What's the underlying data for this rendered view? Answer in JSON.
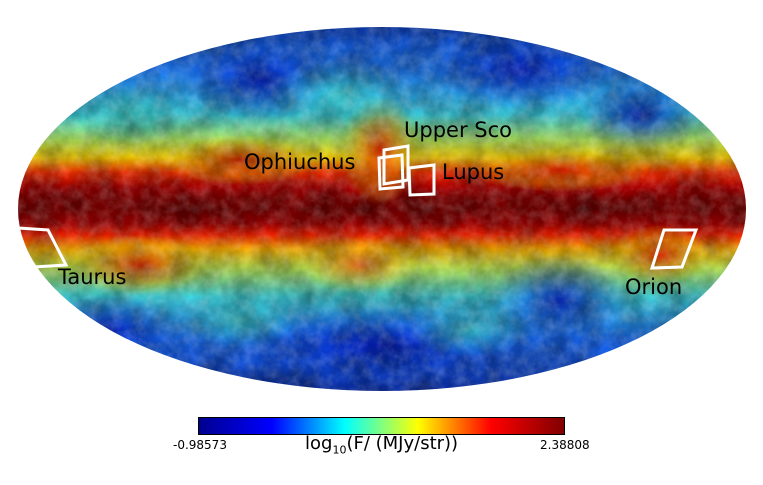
{
  "map": {
    "projection": "mollweide",
    "regions": [
      {
        "id": "upper-sco",
        "label": "Upper Sco"
      },
      {
        "id": "ophiuchus",
        "label": "Ophiuchus"
      },
      {
        "id": "lupus",
        "label": "Lupus"
      },
      {
        "id": "taurus",
        "label": "Taurus"
      },
      {
        "id": "orion",
        "label": "Orion"
      }
    ],
    "outline_color": "#ffffff"
  },
  "colorbar": {
    "min_label": "-0.98573",
    "max_label": "2.38808",
    "title_prefix": "log",
    "title_sub": "10",
    "title_suffix": "(F/ (MJy/str))",
    "colormap": "jet",
    "colors": [
      "#00008f",
      "#0000ff",
      "#00ffff",
      "#ffff00",
      "#ff0000",
      "#800000"
    ]
  }
}
